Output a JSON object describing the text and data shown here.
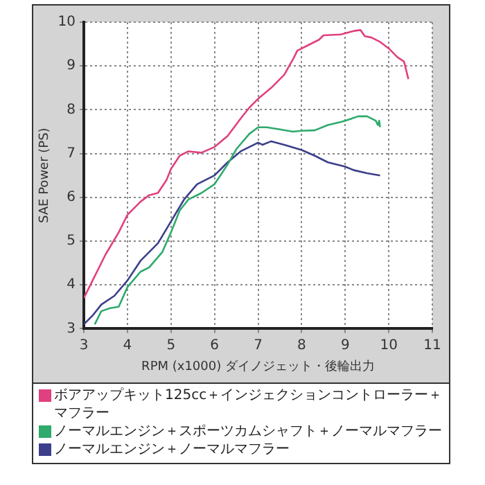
{
  "chart_data": {
    "type": "line",
    "xlabel": "RPM (x1000) ダイノジェット・後輪出力",
    "ylabel": "SAE Power (PS)",
    "xlim": [
      3,
      11
    ],
    "xticks": [
      3,
      4,
      5,
      6,
      7,
      8,
      9,
      10,
      11
    ],
    "ylim": [
      3,
      10
    ],
    "yticks": [
      3,
      4,
      5,
      6,
      7,
      8,
      9,
      10
    ],
    "grid": true,
    "legend": "bottom",
    "marker": "none",
    "line_style": "solid",
    "series": [
      {
        "name": "ボアアップキット125cc＋インジェクションコントローラー＋マフラー",
        "color": "#e0407f",
        "x": [
          3.0,
          3.2,
          3.5,
          3.8,
          4.0,
          4.3,
          4.5,
          4.7,
          4.9,
          5.0,
          5.2,
          5.4,
          5.7,
          6.0,
          6.3,
          6.6,
          6.8,
          7.0,
          7.3,
          7.6,
          7.8,
          7.9,
          8.1,
          8.4,
          8.5,
          8.9,
          9.2,
          9.35,
          9.45,
          9.6,
          9.8,
          10.0,
          10.2,
          10.35,
          10.45
        ],
        "values": [
          3.7,
          4.1,
          4.7,
          5.2,
          5.6,
          5.9,
          6.05,
          6.1,
          6.4,
          6.65,
          6.95,
          7.05,
          7.02,
          7.15,
          7.4,
          7.8,
          8.05,
          8.25,
          8.5,
          8.8,
          9.15,
          9.35,
          9.45,
          9.6,
          9.7,
          9.72,
          9.8,
          9.82,
          9.68,
          9.65,
          9.55,
          9.4,
          9.2,
          9.1,
          8.7
        ]
      },
      {
        "name": "ノーマルエンジン＋スポーツカムシャフト＋ノーマルマフラー",
        "color": "#2eaa6c",
        "x": [
          3.25,
          3.4,
          3.6,
          3.8,
          4.0,
          4.3,
          4.5,
          4.8,
          5.0,
          5.2,
          5.4,
          5.7,
          6.0,
          6.3,
          6.5,
          6.8,
          7.0,
          7.2,
          7.5,
          7.8,
          8.0,
          8.3,
          8.6,
          8.9,
          9.0,
          9.3,
          9.5,
          9.7,
          9.75,
          9.78,
          9.8
        ],
        "values": [
          3.1,
          3.4,
          3.47,
          3.5,
          3.95,
          4.3,
          4.4,
          4.75,
          5.2,
          5.7,
          5.95,
          6.1,
          6.3,
          6.75,
          7.1,
          7.45,
          7.6,
          7.6,
          7.55,
          7.5,
          7.52,
          7.53,
          7.65,
          7.72,
          7.75,
          7.85,
          7.85,
          7.75,
          7.65,
          7.75,
          7.6
        ]
      },
      {
        "name": "ノーマルエンジン＋ノーマルマフラー",
        "color": "#3c3f8a",
        "x": [
          3.0,
          3.2,
          3.4,
          3.7,
          4.0,
          4.3,
          4.7,
          5.0,
          5.3,
          5.6,
          6.0,
          6.3,
          6.6,
          7.0,
          7.1,
          7.3,
          7.6,
          8.0,
          8.3,
          8.6,
          9.0,
          9.2,
          9.5,
          9.8
        ],
        "values": [
          3.1,
          3.3,
          3.55,
          3.75,
          4.1,
          4.55,
          4.95,
          5.45,
          5.95,
          6.3,
          6.5,
          6.8,
          7.05,
          7.25,
          7.2,
          7.28,
          7.2,
          7.08,
          6.95,
          6.8,
          6.7,
          6.62,
          6.55,
          6.5
        ]
      }
    ]
  }
}
